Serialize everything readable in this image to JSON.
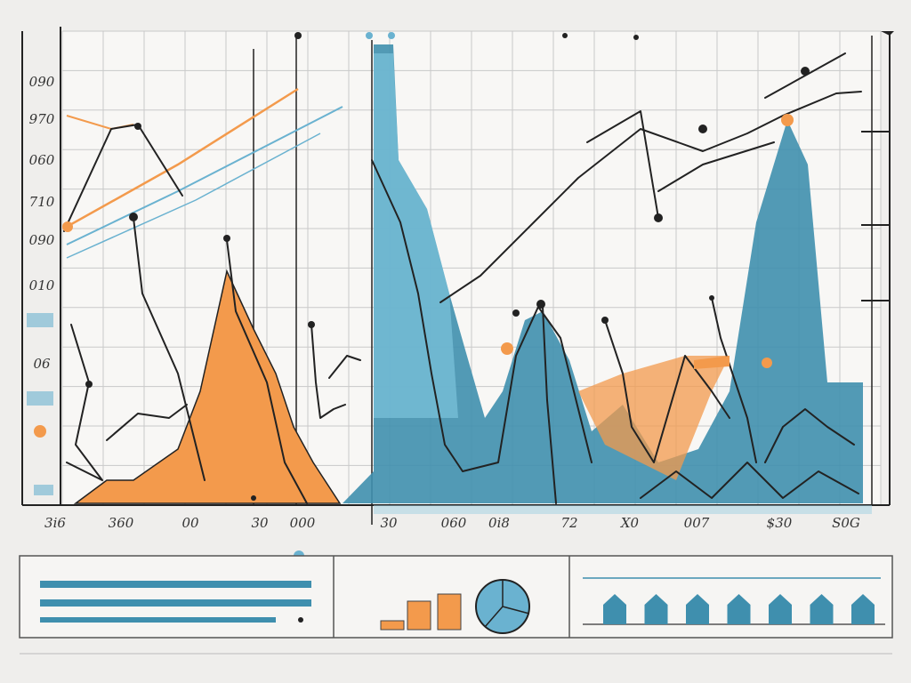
{
  "y_axis_labels": [
    "090",
    "970",
    "060",
    "710",
    "090",
    "010",
    "06"
  ],
  "x_axis_labels": [
    "3i6",
    "360",
    "00",
    "30",
    "000",
    "30",
    "060",
    "0i8",
    "72",
    "X0",
    "007",
    "$30",
    "S0G"
  ]
}
